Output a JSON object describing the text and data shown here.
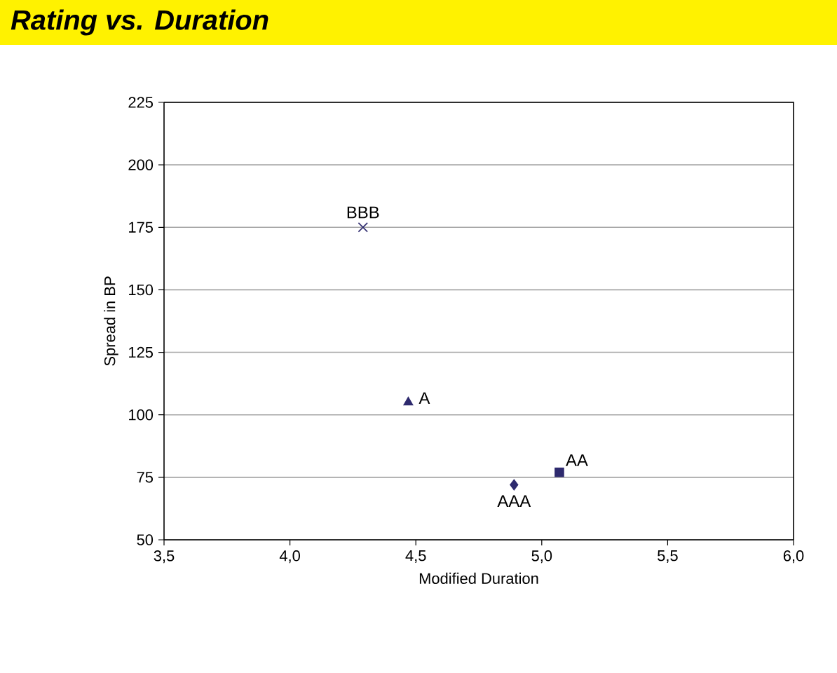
{
  "chart_data": {
    "type": "scatter",
    "title": "Rating vs. Duration",
    "xlabel": "Modified Duration",
    "ylabel": "Spread in BP",
    "xlim": [
      3.5,
      6.0
    ],
    "ylim": [
      50,
      225
    ],
    "xticks": [
      {
        "value": 3.5,
        "label": "3,5"
      },
      {
        "value": 4.0,
        "label": "4,0"
      },
      {
        "value": 4.5,
        "label": "4,5"
      },
      {
        "value": 5.0,
        "label": "5,0"
      },
      {
        "value": 5.5,
        "label": "5,5"
      },
      {
        "value": 6.0,
        "label": "6,0"
      }
    ],
    "yticks": [
      50,
      75,
      100,
      125,
      150,
      175,
      200,
      225
    ],
    "grid": "y",
    "series": [
      {
        "name": "BBB",
        "color": "#2e2a6e",
        "marker": "cross",
        "x": [
          4.29
        ],
        "values": [
          175
        ]
      },
      {
        "name": "A",
        "color": "#2e2a6e",
        "marker": "triangle",
        "x": [
          4.47
        ],
        "values": [
          105
        ]
      },
      {
        "name": "AAA",
        "color": "#2e2a6e",
        "marker": "diamond",
        "x": [
          4.89
        ],
        "values": [
          72
        ]
      },
      {
        "name": "AA",
        "color": "#2e2a6e",
        "marker": "square",
        "x": [
          5.07
        ],
        "values": [
          77
        ]
      }
    ]
  }
}
